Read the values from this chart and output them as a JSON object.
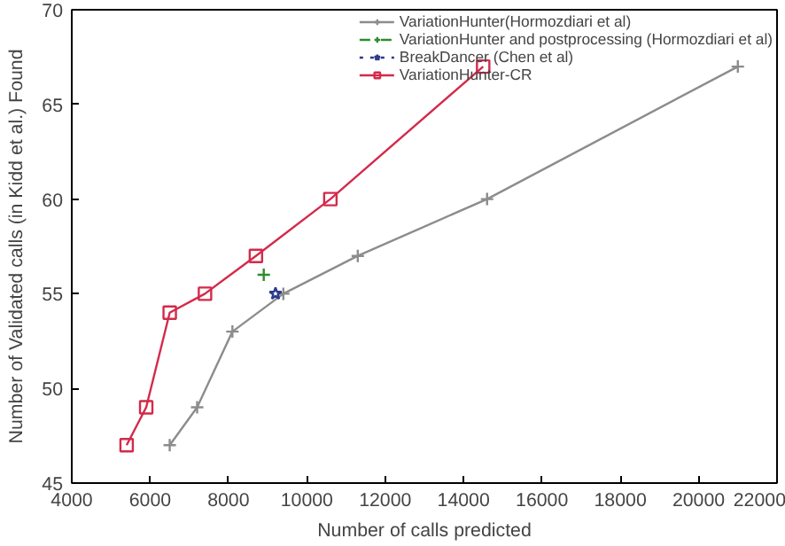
{
  "chart_data": {
    "type": "line",
    "xlabel": "Number of calls predicted",
    "ylabel": "Number of Validated calls (in Kidd et al.) Found",
    "xlim": [
      4000,
      22000
    ],
    "xticks": [
      4000,
      6000,
      8000,
      10000,
      12000,
      14000,
      16000,
      18000,
      20000,
      22000
    ],
    "ylim": [
      45,
      70
    ],
    "yticks": [
      45,
      50,
      55,
      60,
      65,
      70
    ],
    "grid": false,
    "legend": "top right",
    "series": [
      {
        "name": "VariationHunter(Hormozdiari et al)",
        "color": "#8c8c8c",
        "marker": "cross",
        "line_style": "solid",
        "x": [
          6500,
          7200,
          8100,
          9400,
          11300,
          14600,
          21000
        ],
        "values": [
          47,
          49,
          53,
          55,
          57,
          60,
          67
        ]
      },
      {
        "name": "VariationHunter and postprocessing (Hormozdiari et al)",
        "color": "#2e8b2e",
        "marker": "cross",
        "line_style": "dashed",
        "x": [
          8900
        ],
        "values": [
          56
        ]
      },
      {
        "name": "BreakDancer (Chen et al)",
        "color": "#2b3a8c",
        "marker": "star",
        "line_style": "dotted",
        "x": [
          9200
        ],
        "values": [
          55
        ]
      },
      {
        "name": "VariationHunter-CR",
        "color": "#d42a4a",
        "marker": "square",
        "line_style": "solid",
        "x": [
          5400,
          5900,
          6500,
          7400,
          8700,
          10600,
          14500
        ],
        "values": [
          47,
          49,
          54,
          55,
          57,
          60,
          67
        ]
      }
    ]
  }
}
